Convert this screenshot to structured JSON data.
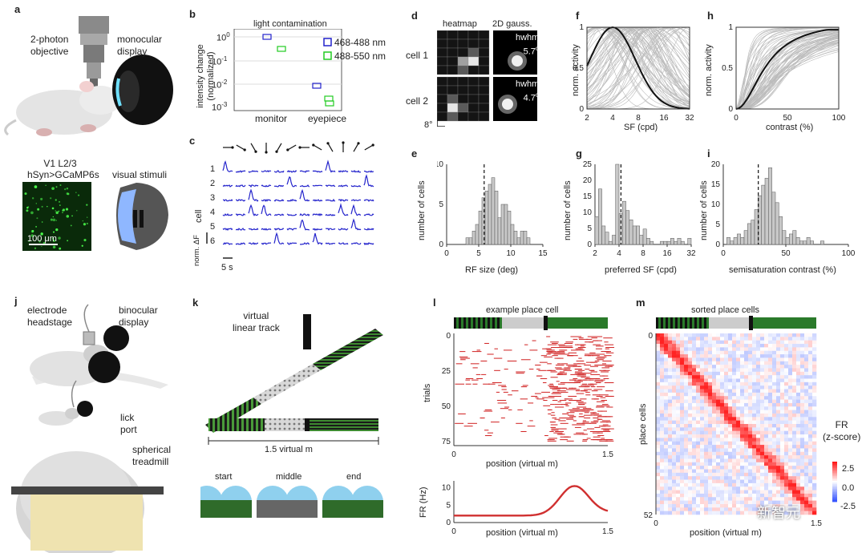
{
  "panels": {
    "a": {
      "letter": "a",
      "objective_label": [
        "2-photon",
        "objective"
      ],
      "display_label": [
        "monocular",
        "display"
      ],
      "imaging_label": [
        "V1 L2/3",
        "hSyn>GCaMP6s"
      ],
      "stimuli_label": "visual stimuli",
      "scale_bar": "100 μm"
    },
    "b": {
      "letter": "b",
      "title": "light contamination",
      "ylabel": [
        "intensity change",
        "(normalized)"
      ],
      "yticks": [
        "10",
        "10",
        "10",
        "10"
      ],
      "yexp": [
        "0",
        "-1",
        "-2",
        "-3"
      ],
      "categories": [
        "monitor",
        "eyepiece"
      ],
      "legend": [
        {
          "label": "468-488 nm",
          "color": "#2222cc"
        },
        {
          "label": "488-550 nm",
          "color": "#22cc22"
        }
      ]
    },
    "c": {
      "letter": "c",
      "ylabel": "cell",
      "cells": [
        "1",
        "2",
        "3",
        "4",
        "5",
        "6"
      ],
      "scale_v": "norm. ΔF",
      "scale_h": "5 s",
      "trace_color": "#2424cc"
    },
    "d": {
      "letter": "d",
      "heatmap_title": "heatmap",
      "gauss_title": "2D gauss.",
      "cells": [
        {
          "label": "cell 1",
          "hwhm": "hwhm",
          "value": "5.7",
          "unit": "o"
        },
        {
          "label": "cell 2",
          "hwhm": "hwhm",
          "value": "4.7",
          "unit": "o"
        }
      ],
      "scale": "8°"
    },
    "e": {
      "letter": "e",
      "xlabel": "RF size (deg)",
      "ylabel": "number of cells",
      "xticks": [
        "0",
        "5",
        "10",
        "15"
      ],
      "yticks": [
        "0",
        "5",
        "10"
      ]
    },
    "f": {
      "letter": "f",
      "xlabel": "SF (cpd)",
      "ylabel": "norm. activity",
      "xticks": [
        "2",
        "4",
        "8",
        "16",
        "32"
      ],
      "yticks": [
        "0",
        "0.5",
        "1"
      ]
    },
    "g": {
      "letter": "g",
      "xlabel": "preferred SF (cpd)",
      "ylabel": "number of cells",
      "xticks": [
        "2",
        "4",
        "8",
        "16",
        "32"
      ],
      "yticks": [
        "0",
        "5",
        "10",
        "15",
        "20",
        "25"
      ]
    },
    "h": {
      "letter": "h",
      "xlabel": "contrast (%)",
      "ylabel": "norm. activity",
      "xticks": [
        "0",
        "50",
        "100"
      ],
      "yticks": [
        "0",
        "0.5",
        "1"
      ]
    },
    "i": {
      "letter": "i",
      "xlabel": "semisaturation contrast (%)",
      "ylabel": "number of cells",
      "xticks": [
        "0",
        "50",
        "100"
      ],
      "yticks": [
        "0",
        "5",
        "10",
        "15",
        "20"
      ]
    },
    "j": {
      "letter": "j",
      "headstage_label": [
        "electrode",
        "headstage"
      ],
      "display_label": [
        "binocular",
        "display"
      ],
      "lick_label": [
        "lick",
        "port"
      ],
      "treadmill_label": [
        "spherical",
        "treadmill"
      ]
    },
    "k": {
      "letter": "k",
      "track_label": [
        "virtual",
        "linear track"
      ],
      "length_label": "1.5 virtual m",
      "views": [
        "start",
        "middle",
        "end"
      ]
    },
    "l": {
      "letter": "l",
      "title": "example place cell",
      "ylabel": "trials",
      "yticks": [
        "0",
        "25",
        "50",
        "75"
      ],
      "xticks": [
        "0",
        "1.5"
      ],
      "xlabel": "position (virtual m)",
      "fr_ylabel": "FR (Hz)",
      "fr_yticks": [
        "0",
        "5",
        "10"
      ],
      "fr_xticks": [
        "0",
        "1.5"
      ],
      "fr_xlabel": "position (virtual m)"
    },
    "m": {
      "letter": "m",
      "title": "sorted place cells",
      "ylabel": "place cells",
      "yticks": [
        "0",
        "52"
      ],
      "xticks": [
        "0",
        "1.5"
      ],
      "xlabel": "position (virtual m)",
      "cbar_title": [
        "FR",
        "(z-score)"
      ],
      "cbar_ticks": [
        "2.5",
        "0.0",
        "-2.5"
      ]
    }
  },
  "watermark": "新智元",
  "colors": {
    "trace": "#2424cc",
    "raster": "#d02020",
    "hist": "#c8c8c8"
  }
}
